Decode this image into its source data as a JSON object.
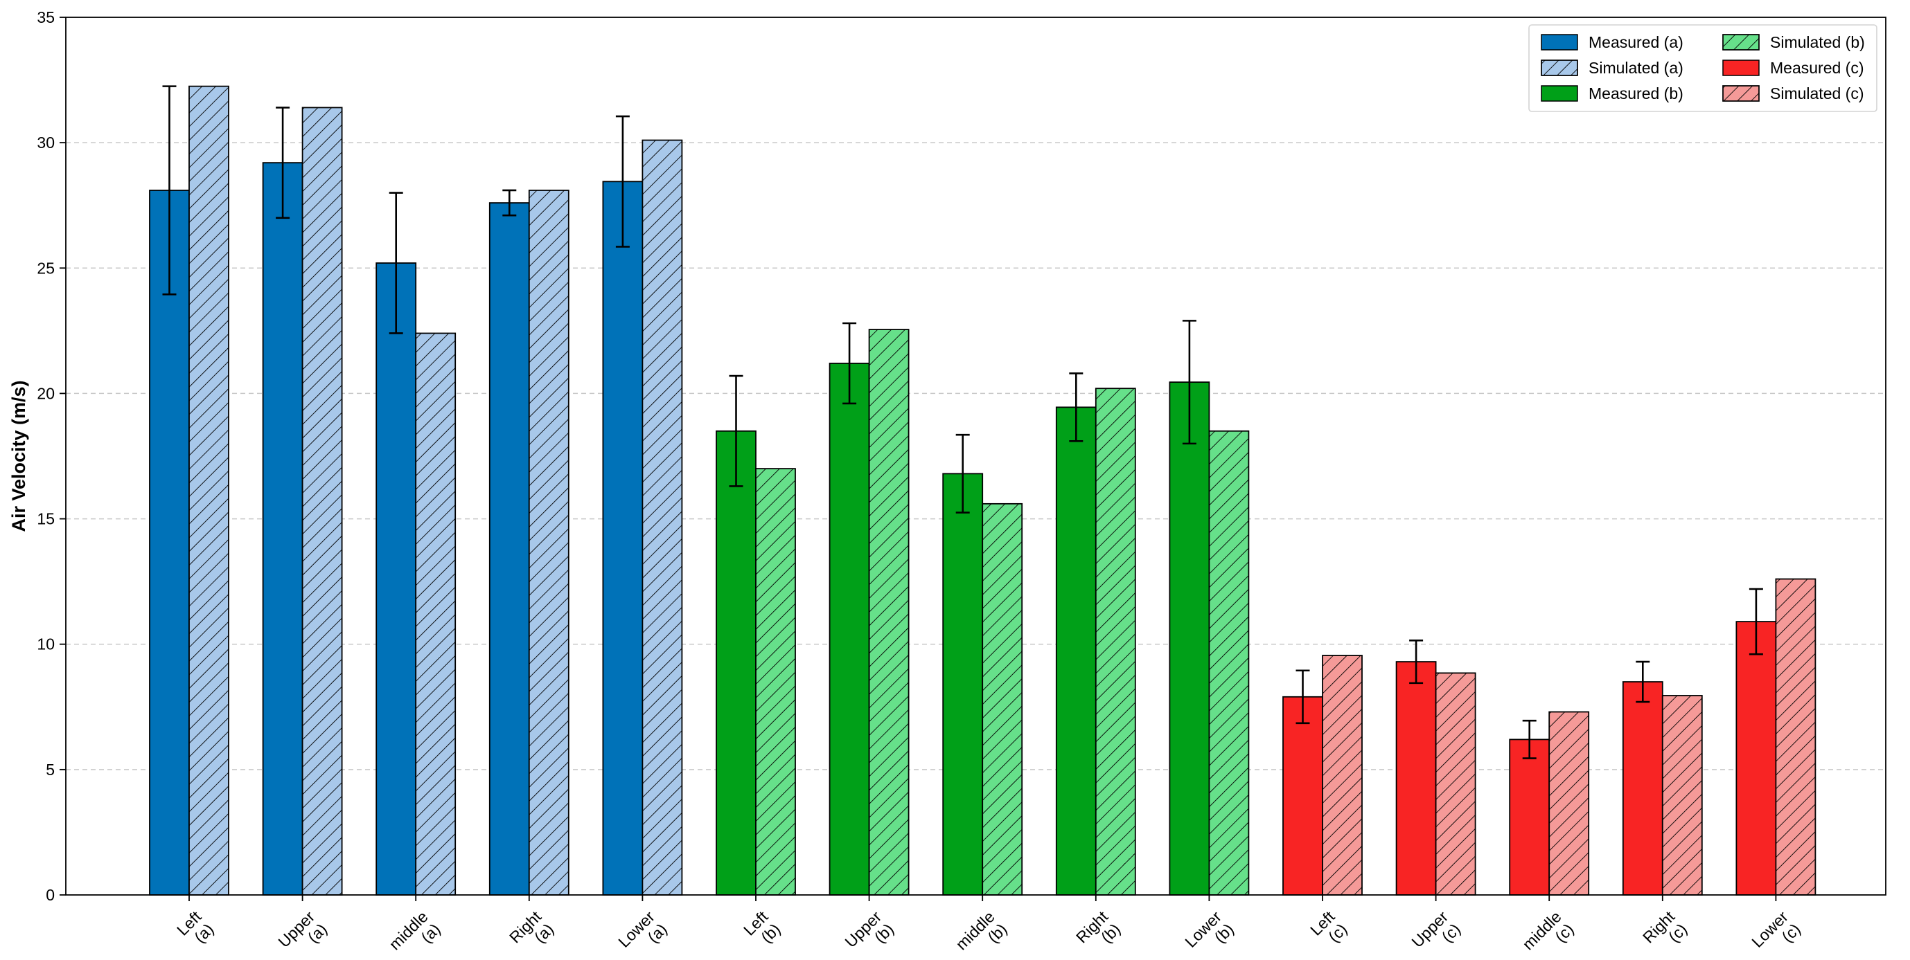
{
  "chart_data": {
    "type": "bar",
    "title": "",
    "xlabel": "",
    "ylabel": "Air Velocity (m/s)",
    "ylim": [
      0,
      35
    ],
    "yticks": [
      0,
      5,
      10,
      15,
      20,
      25,
      30,
      35
    ],
    "grid": "y-dashed",
    "legend_position": "top-right",
    "categories": [
      [
        "Left",
        "(a)"
      ],
      [
        "Upper",
        "(a)"
      ],
      [
        "middle",
        "(a)"
      ],
      [
        "Right",
        "(a)"
      ],
      [
        "Lower",
        "(a)"
      ],
      [
        "Left",
        "(b)"
      ],
      [
        "Upper",
        "(b)"
      ],
      [
        "middle",
        "(b)"
      ],
      [
        "Right",
        "(b)"
      ],
      [
        "Lower",
        "(b)"
      ],
      [
        "Left",
        "(c)"
      ],
      [
        "Upper",
        "(c)"
      ],
      [
        "middle",
        "(c)"
      ],
      [
        "Right",
        "(c)"
      ],
      [
        "Lower",
        "(c)"
      ]
    ],
    "groups": [
      "a",
      "a",
      "a",
      "a",
      "a",
      "b",
      "b",
      "b",
      "b",
      "b",
      "c",
      "c",
      "c",
      "c",
      "c"
    ],
    "measured": [
      28.1,
      29.2,
      25.2,
      27.6,
      28.45,
      18.5,
      21.2,
      16.8,
      19.45,
      20.45,
      7.9,
      9.3,
      6.2,
      8.5,
      10.9
    ],
    "measured_error": [
      4.15,
      2.2,
      2.8,
      0.5,
      2.6,
      2.2,
      1.6,
      1.55,
      1.35,
      2.45,
      1.05,
      0.85,
      0.75,
      0.8,
      1.3
    ],
    "simulated": [
      32.25,
      31.4,
      22.4,
      28.1,
      30.1,
      17.0,
      22.55,
      15.6,
      20.2,
      18.5,
      9.55,
      8.85,
      7.3,
      7.95,
      12.6
    ],
    "colors": {
      "a": {
        "measured": "#0072b8",
        "simulated": "#a8c8ea"
      },
      "b": {
        "measured": "#00a018",
        "simulated": "#66e08a"
      },
      "c": {
        "measured": "#f82424",
        "simulated": "#f59a98"
      }
    },
    "legend": [
      [
        "Measured (a)",
        "Simulated (b)"
      ],
      [
        "Simulated (a)",
        "Measured (c)"
      ],
      [
        "Measured (b)",
        "Simulated (c)"
      ]
    ]
  }
}
